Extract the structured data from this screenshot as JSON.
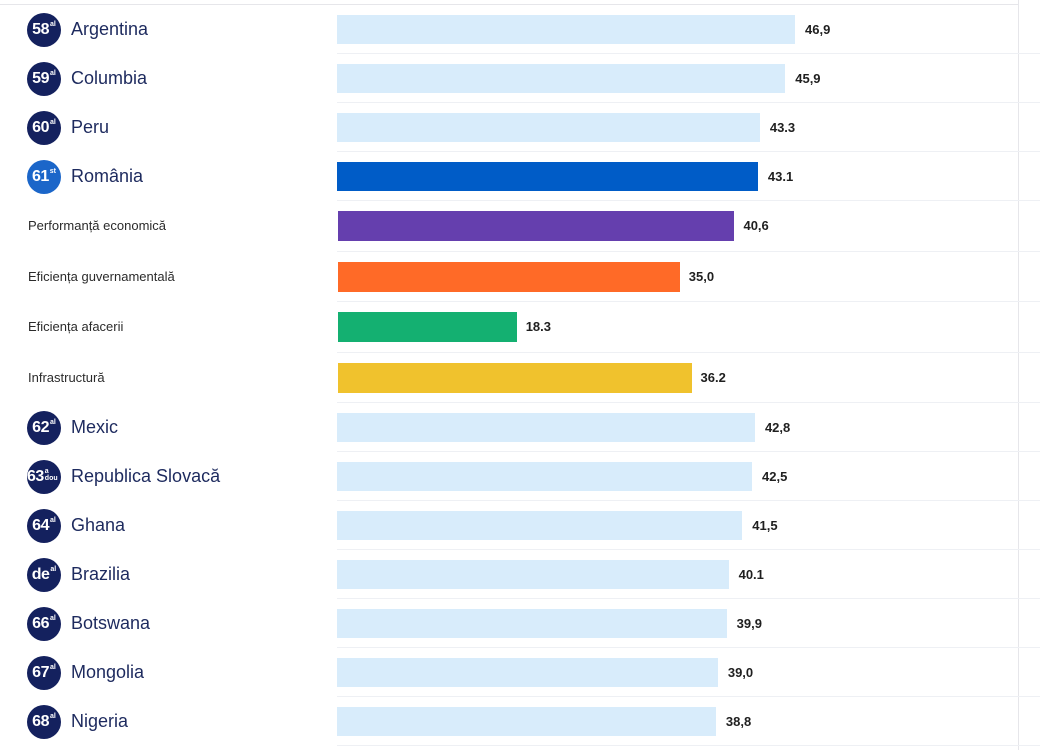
{
  "chart_data": {
    "type": "bar",
    "orientation": "horizontal",
    "grid": false,
    "rows": [
      {
        "rank": "58",
        "suffix": "al",
        "label": "Argentina",
        "value": 46.9,
        "value_label": "46,9",
        "kind": "country",
        "color": "#d8ecfb"
      },
      {
        "rank": "59",
        "suffix": "al",
        "label": "Columbia",
        "value": 45.9,
        "value_label": "45,9",
        "kind": "country",
        "color": "#d8ecfb"
      },
      {
        "rank": "60",
        "suffix": "al",
        "label": "Peru",
        "value": 43.3,
        "value_label": "43.3",
        "kind": "country",
        "color": "#d8ecfb"
      },
      {
        "rank": "61",
        "suffix": "st",
        "label": "România",
        "value": 43.1,
        "value_label": "43.1",
        "kind": "country",
        "highlight": true,
        "color": "#005cc7"
      },
      {
        "label": "Performanță economică",
        "value": 40.6,
        "value_label": "40,6",
        "kind": "factor",
        "color": "#653fae"
      },
      {
        "label": "Eficiența guvernamentală",
        "value": 35.0,
        "value_label": "35,0",
        "kind": "factor",
        "color": "#ff6a27"
      },
      {
        "label": "Eficiența afacerii",
        "value": 18.3,
        "value_label": "18.3",
        "kind": "factor",
        "color": "#14b071"
      },
      {
        "label": "Infrastructură",
        "value": 36.2,
        "value_label": "36.2",
        "kind": "factor",
        "color": "#f0c22d"
      },
      {
        "rank": "62",
        "suffix": "al",
        "label": "Mexic",
        "value": 42.8,
        "value_label": "42,8",
        "kind": "country",
        "color": "#d8ecfb"
      },
      {
        "rank": "63",
        "suffix": "a dou",
        "label": "Republica Slovacă",
        "value": 42.5,
        "value_label": "42,5",
        "kind": "country",
        "color": "#d8ecfb"
      },
      {
        "rank": "64",
        "suffix": "al",
        "label": "Ghana",
        "value": 41.5,
        "value_label": "41,5",
        "kind": "country",
        "color": "#d8ecfb"
      },
      {
        "rank": "de",
        "suffix": "al",
        "label": "Brazilia",
        "value": 40.1,
        "value_label": "40.1",
        "kind": "country",
        "color": "#d8ecfb"
      },
      {
        "rank": "66",
        "suffix": "al",
        "label": "Botswana",
        "value": 39.9,
        "value_label": "39,9",
        "kind": "country",
        "color": "#d8ecfb"
      },
      {
        "rank": "67",
        "suffix": "al",
        "label": "Mongolia",
        "value": 39.0,
        "value_label": "39,0",
        "kind": "country",
        "color": "#d8ecfb"
      },
      {
        "rank": "68",
        "suffix": "al",
        "label": "Nigeria",
        "value": 38.8,
        "value_label": "38,8",
        "kind": "country",
        "color": "#d8ecfb"
      }
    ]
  }
}
